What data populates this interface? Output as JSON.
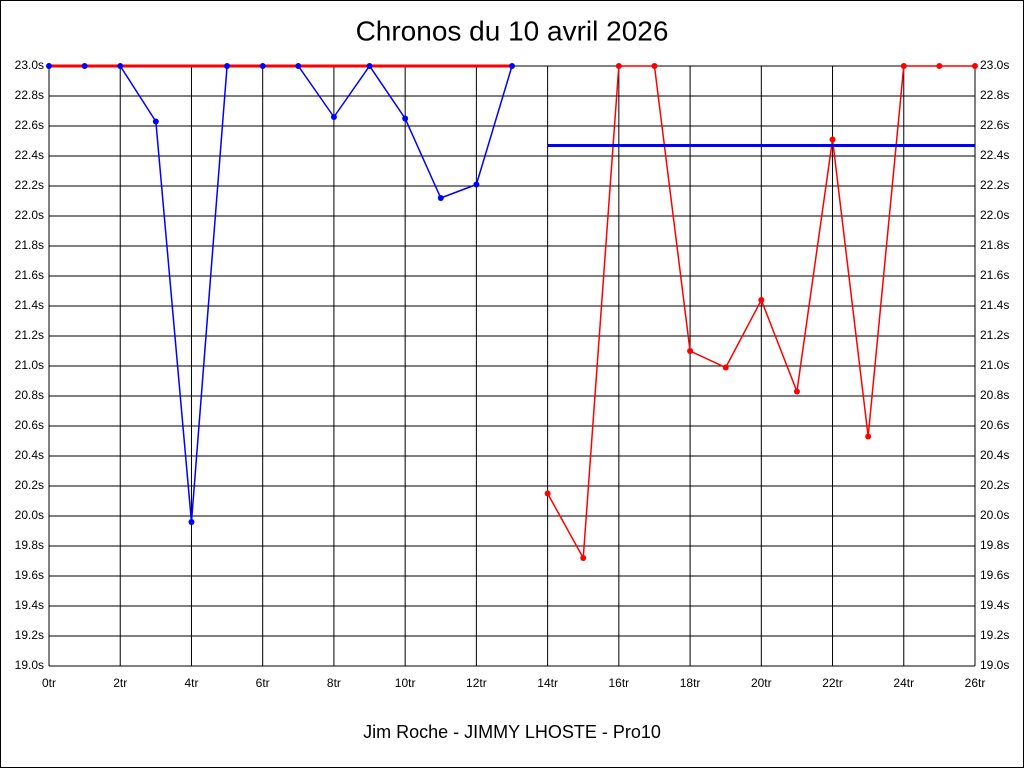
{
  "chart_data": {
    "type": "line",
    "title": "Chronos du 10 avril 2026",
    "footer": "Jim Roche - JIMMY LHOSTE - Pro10",
    "xlim": [
      0,
      26
    ],
    "xticks": [
      {
        "value": 0,
        "label": "0tr"
      },
      {
        "value": 2,
        "label": "2tr"
      },
      {
        "value": 4,
        "label": "4tr"
      },
      {
        "value": 6,
        "label": "6tr"
      },
      {
        "value": 8,
        "label": "8tr"
      },
      {
        "value": 10,
        "label": "10tr"
      },
      {
        "value": 12,
        "label": "12tr"
      },
      {
        "value": 14,
        "label": "14tr"
      },
      {
        "value": 16,
        "label": "16tr"
      },
      {
        "value": 18,
        "label": "18tr"
      },
      {
        "value": 20,
        "label": "20tr"
      },
      {
        "value": 22,
        "label": "22tr"
      },
      {
        "value": 24,
        "label": "24tr"
      },
      {
        "value": 26,
        "label": "26tr"
      }
    ],
    "ylim": [
      19.0,
      23.0
    ],
    "yticks": [
      {
        "value": 19.0,
        "label": "19.0s"
      },
      {
        "value": 19.2,
        "label": "19.2s"
      },
      {
        "value": 19.4,
        "label": "19.4s"
      },
      {
        "value": 19.6,
        "label": "19.6s"
      },
      {
        "value": 19.8,
        "label": "19.8s"
      },
      {
        "value": 20.0,
        "label": "20.0s"
      },
      {
        "value": 20.2,
        "label": "20.2s"
      },
      {
        "value": 20.4,
        "label": "20.4s"
      },
      {
        "value": 20.6,
        "label": "20.6s"
      },
      {
        "value": 20.8,
        "label": "20.8s"
      },
      {
        "value": 21.0,
        "label": "21.0s"
      },
      {
        "value": 21.2,
        "label": "21.2s"
      },
      {
        "value": 21.4,
        "label": "21.4s"
      },
      {
        "value": 21.6,
        "label": "21.6s"
      },
      {
        "value": 21.8,
        "label": "21.8s"
      },
      {
        "value": 22.0,
        "label": "22.0s"
      },
      {
        "value": 22.2,
        "label": "22.2s"
      },
      {
        "value": 22.4,
        "label": "22.4s"
      },
      {
        "value": 22.6,
        "label": "22.6s"
      },
      {
        "value": 22.8,
        "label": "22.8s"
      },
      {
        "value": 23.0,
        "label": "23.0s"
      }
    ],
    "grid": true,
    "series": [
      {
        "color": "#0000ff",
        "x": [
          0,
          1,
          2,
          3,
          4,
          5,
          6,
          7,
          8,
          9,
          10,
          11,
          12,
          13
        ],
        "values": [
          23.0,
          23.0,
          23.0,
          22.63,
          19.96,
          23.0,
          23.0,
          23.0,
          22.66,
          23.0,
          22.65,
          22.12,
          22.21,
          23.0
        ]
      },
      {
        "color": "#ff0000",
        "x": [
          14,
          15,
          16,
          17,
          18,
          19,
          20,
          21,
          22,
          23,
          24,
          25,
          26
        ],
        "values": [
          20.15,
          19.72,
          23.0,
          23.0,
          21.1,
          20.99,
          21.44,
          20.83,
          22.51,
          20.53,
          23.0,
          23.0,
          23.0
        ]
      }
    ],
    "reference_lines": [
      {
        "color": "#ff0000",
        "x": [
          0,
          13
        ],
        "values": [
          23.0,
          23.0
        ]
      },
      {
        "color": "#0000ff",
        "x": [
          14,
          26
        ],
        "values": [
          22.47,
          22.47
        ]
      }
    ]
  }
}
